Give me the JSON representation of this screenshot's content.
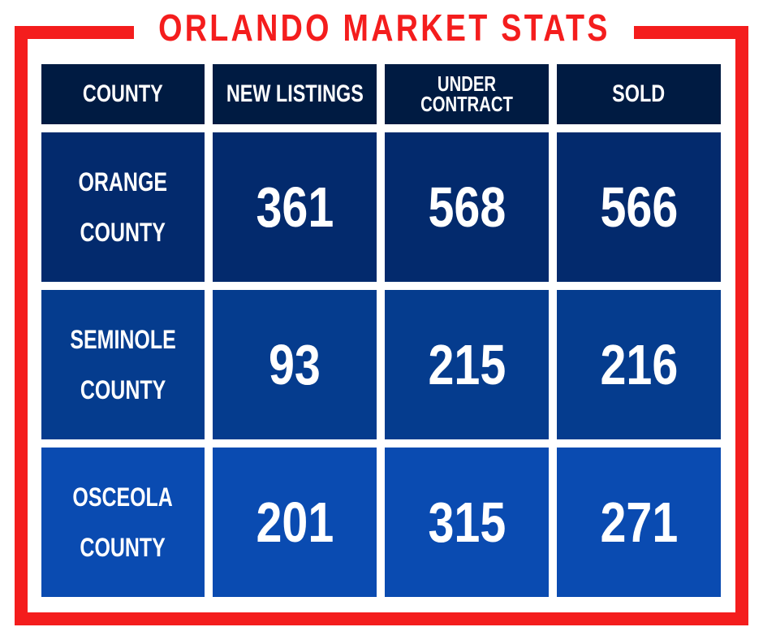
{
  "title": "ORLANDO MARKET STATS",
  "colors": {
    "frame_red": "#f41d1d",
    "header_navy": "#001b42",
    "row1_blue": "#032a6d",
    "row2_blue": "#053c8e",
    "row3_blue": "#0a4bb1",
    "text": "#ffffff"
  },
  "table": {
    "headers": [
      "COUNTY",
      "NEW LISTINGS",
      "UNDER CONTRACT",
      "SOLD"
    ],
    "header_under_contract_lines": [
      "UNDER",
      "CONTRACT"
    ],
    "rows": [
      {
        "county_lines": [
          "ORANGE",
          "COUNTY"
        ],
        "new_listings": "361",
        "under_contract": "568",
        "sold": "566"
      },
      {
        "county_lines": [
          "SEMINOLE",
          "COUNTY"
        ],
        "new_listings": "93",
        "under_contract": "215",
        "sold": "216"
      },
      {
        "county_lines": [
          "OSCEOLA",
          "COUNTY"
        ],
        "new_listings": "201",
        "under_contract": "315",
        "sold": "271"
      }
    ]
  }
}
